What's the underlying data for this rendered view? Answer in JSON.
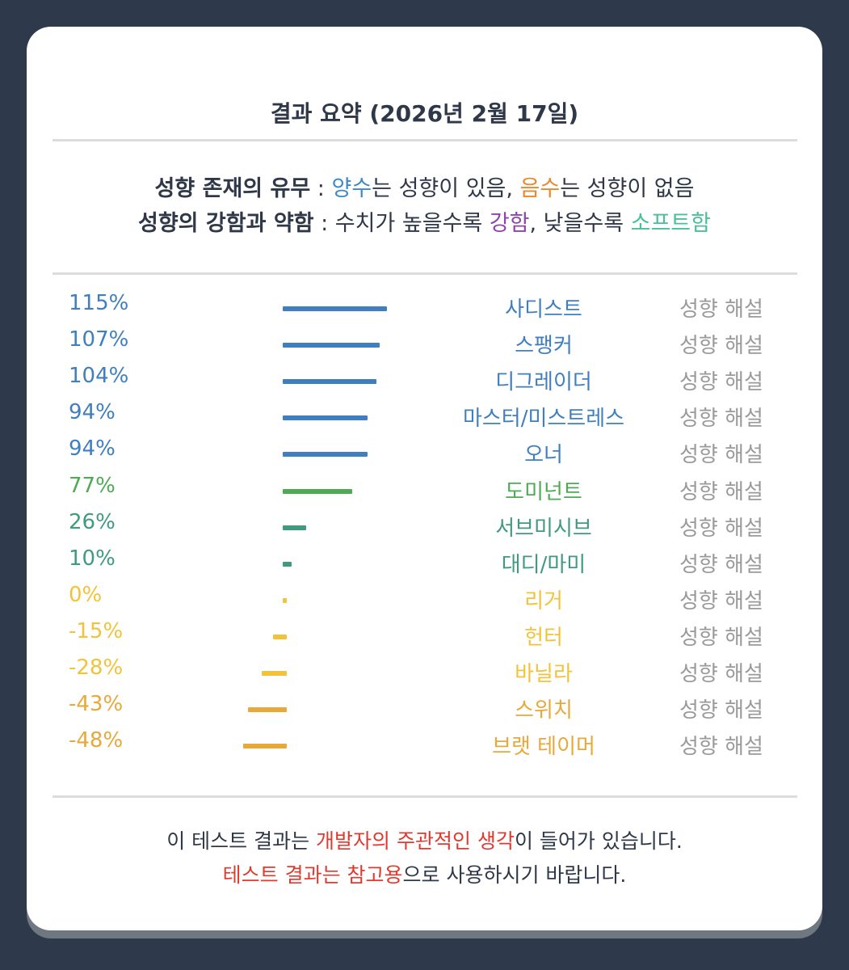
{
  "title": "결과 요약 (2026년 2월 17일)",
  "legend": {
    "line1": {
      "head": "성향 존재의 유무",
      "sep": " : ",
      "positive": "양수",
      "mid1": "는 성향이 있음, ",
      "negative": "음수",
      "tail": "는 성향이 없음"
    },
    "line2": {
      "head": "성향의 강함과 약함",
      "sep": " : ",
      "mid1": "수치가 높을수록 ",
      "strong": "강함",
      "mid2": ", 낮을수록 ",
      "soft": "소프트함"
    }
  },
  "explain_label": "성향 해설",
  "results": [
    {
      "pct": "115%",
      "value": 115,
      "label": "사디스트",
      "color": "#3f7fbf"
    },
    {
      "pct": "107%",
      "value": 107,
      "label": "스팽커",
      "color": "#3f7fbf"
    },
    {
      "pct": "104%",
      "value": 104,
      "label": "디그레이더",
      "color": "#3f7fbf"
    },
    {
      "pct": "94%",
      "value": 94,
      "label": "마스터/미스트레스",
      "color": "#3f7fbf"
    },
    {
      "pct": "94%",
      "value": 94,
      "label": "오너",
      "color": "#3f7fbf"
    },
    {
      "pct": "77%",
      "value": 77,
      "label": "도미넌트",
      "color": "#4faa55"
    },
    {
      "pct": "26%",
      "value": 26,
      "label": "서브미시브",
      "color": "#3f9a80"
    },
    {
      "pct": "10%",
      "value": 10,
      "label": "대디/마미",
      "color": "#3f9a80"
    },
    {
      "pct": "0%",
      "value": 0,
      "label": "리거",
      "color": "#f2c33a"
    },
    {
      "pct": "-15%",
      "value": -15,
      "label": "헌터",
      "color": "#f2c33a"
    },
    {
      "pct": "-28%",
      "value": -28,
      "label": "바닐라",
      "color": "#f2c33a"
    },
    {
      "pct": "-43%",
      "value": -43,
      "label": "스위치",
      "color": "#e8a83a"
    },
    {
      "pct": "-48%",
      "value": -48,
      "label": "브랫 테이머",
      "color": "#e8a83a"
    }
  ],
  "footer": {
    "line1_a": "이 테스트 결과는 ",
    "line1_red": "개발자의 주관적인 생각",
    "line1_b": "이 들어가 있습니다.",
    "line2_red": "테스트 결과는 참고용",
    "line2_b": "으로 사용하시기 바랍니다."
  }
}
